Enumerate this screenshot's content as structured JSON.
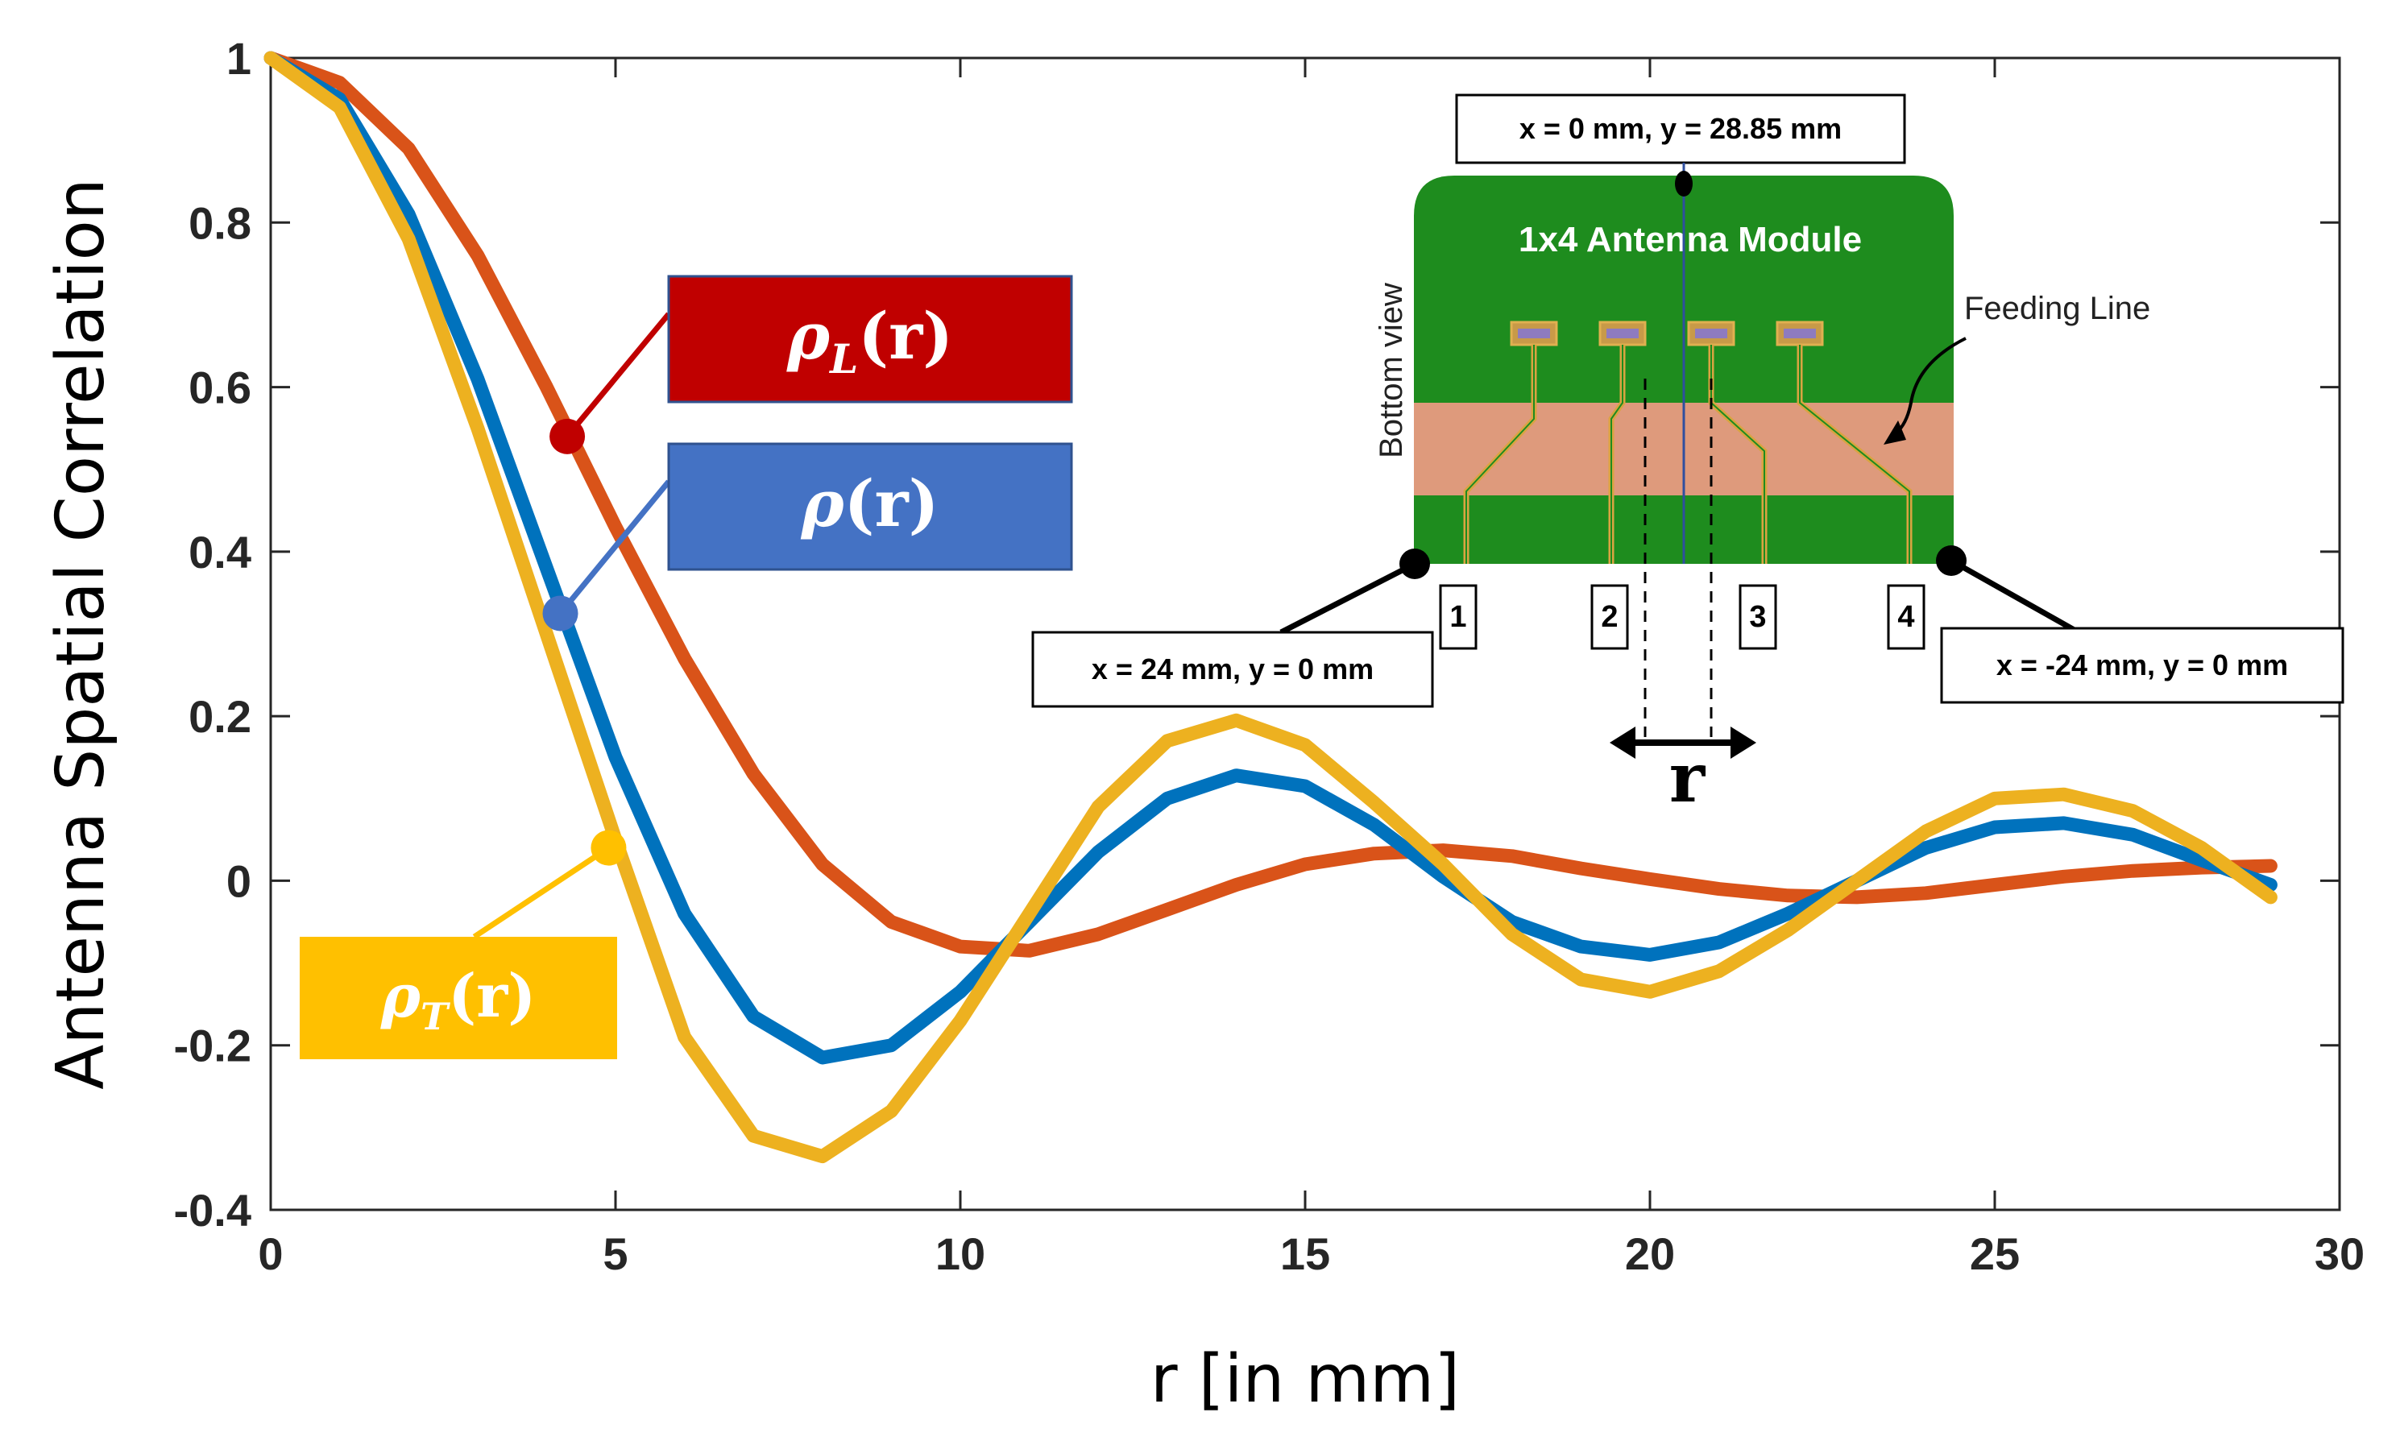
{
  "chart_data": {
    "type": "line",
    "title": "",
    "xlabel": "r [in mm]",
    "ylabel": "Antenna Spatial Correlation",
    "xlim": [
      0,
      30
    ],
    "ylim": [
      -0.4,
      1
    ],
    "xticks": [
      0,
      5,
      10,
      15,
      20,
      25,
      30
    ],
    "xtick_labels": [
      "0",
      "5",
      "10",
      "15",
      "20",
      "25",
      "30"
    ],
    "yticks": [
      -0.4,
      -0.2,
      0,
      0.2,
      0.4,
      0.6,
      0.8,
      1
    ],
    "ytick_labels": [
      "-0.4",
      "-0.2",
      "0",
      "0.2",
      "0.4",
      "0.6",
      "0.8",
      "1"
    ],
    "grid": false,
    "x": [
      0,
      1,
      2,
      3,
      4,
      5,
      6,
      7,
      8,
      9,
      10,
      11,
      12,
      13,
      14,
      15,
      16,
      17,
      18,
      19,
      20,
      21,
      22,
      23,
      24,
      25,
      26,
      27,
      28,
      29
    ],
    "series": [
      {
        "name": "ρL(r)",
        "color": "#D95319",
        "values": [
          1.0,
          0.97,
          0.89,
          0.76,
          0.6,
          0.43,
          0.27,
          0.13,
          0.02,
          -0.05,
          -0.08,
          -0.085,
          -0.065,
          -0.035,
          -0.005,
          0.02,
          0.033,
          0.037,
          0.03,
          0.015,
          0.002,
          -0.01,
          -0.018,
          -0.02,
          -0.015,
          -0.005,
          0.005,
          0.012,
          0.016,
          0.018
        ]
      },
      {
        "name": "ρ(r)",
        "color": "#0072BD",
        "values": [
          1.0,
          0.95,
          0.81,
          0.61,
          0.38,
          0.15,
          -0.04,
          -0.165,
          -0.215,
          -0.2,
          -0.135,
          -0.05,
          0.035,
          0.1,
          0.128,
          0.115,
          0.068,
          0.005,
          -0.05,
          -0.08,
          -0.09,
          -0.075,
          -0.04,
          0.0,
          0.04,
          0.065,
          0.07,
          0.056,
          0.025,
          -0.005
        ]
      },
      {
        "name": "ρT(r)",
        "color": "#EDB120",
        "values": [
          1.0,
          0.94,
          0.78,
          0.55,
          0.3,
          0.05,
          -0.19,
          -0.31,
          -0.335,
          -0.28,
          -0.17,
          -0.04,
          0.09,
          0.17,
          0.195,
          0.165,
          0.095,
          0.02,
          -0.065,
          -0.12,
          -0.135,
          -0.11,
          -0.06,
          0.0,
          0.06,
          0.1,
          0.105,
          0.085,
          0.04,
          -0.02
        ]
      }
    ],
    "legend": {
      "placement": "left callouts",
      "items": [
        {
          "main": "ρ",
          "sub": "L",
          "arg": "(r)",
          "color": "#C00000",
          "marker_x": 4.3,
          "marker_y": 0.54
        },
        {
          "main": "ρ",
          "sub": "",
          "arg": "(r)",
          "color": "#4472C4",
          "marker_x": 4.2,
          "marker_y": 0.325
        },
        {
          "main": "ρ",
          "sub": "T",
          "arg": "(r)",
          "color": "#FFC000",
          "marker_x": 4.9,
          "marker_y": 0.04
        }
      ]
    }
  },
  "inset": {
    "module_title": "1x4 Antenna Module",
    "side_label": "Bottom view",
    "feeding_label": "Feeding Line",
    "top_callout": "x = 0 mm, y = 28.85 mm",
    "left_callout": "x = 24 mm, y = 0 mm",
    "right_callout": "x = -24 mm, y = 0 mm",
    "ports": [
      "1",
      "2",
      "3",
      "4"
    ],
    "distance_label": "r",
    "colors": {
      "board": "#1E8C1E",
      "substrate": "#DE9A7C",
      "feed": "#D9A441",
      "patch": "#8E7BBF"
    }
  }
}
